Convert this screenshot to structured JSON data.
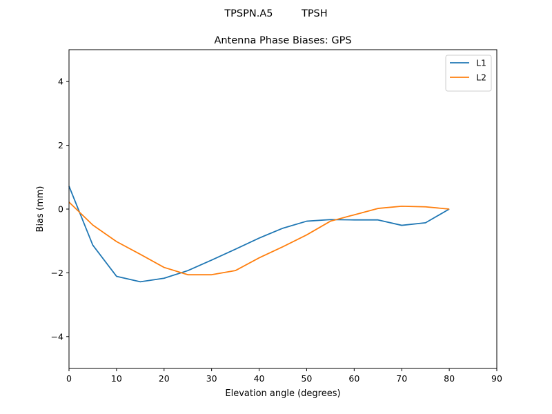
{
  "figure": {
    "suptitle": "TPSPN.A5         TPSH"
  },
  "chart_data": {
    "type": "line",
    "title": "Antenna Phase Biases: GPS",
    "xlabel": "Elevation angle (degrees)",
    "ylabel": "Bias (mm)",
    "xlim": [
      0,
      90
    ],
    "ylim": [
      -5,
      5
    ],
    "xticks": [
      0,
      10,
      20,
      30,
      40,
      50,
      60,
      70,
      80,
      90
    ],
    "yticks": [
      -4,
      -2,
      0,
      2,
      4
    ],
    "ytick_labels": [
      "−4",
      "−2",
      "0",
      "2",
      "4"
    ],
    "grid": false,
    "legend_position": "top-right",
    "x": [
      0,
      5,
      10,
      15,
      20,
      25,
      30,
      35,
      40,
      45,
      50,
      55,
      60,
      65,
      70,
      75,
      80
    ],
    "series": [
      {
        "name": "L1",
        "color": "#1f77b4",
        "values": [
          0.72,
          -1.13,
          -2.11,
          -2.28,
          -2.17,
          -1.93,
          -1.6,
          -1.26,
          -0.91,
          -0.6,
          -0.38,
          -0.33,
          -0.34,
          -0.34,
          -0.51,
          -0.43,
          0.0
        ]
      },
      {
        "name": "L2",
        "color": "#ff7f0e",
        "values": [
          0.22,
          -0.5,
          -1.02,
          -1.42,
          -1.83,
          -2.06,
          -2.06,
          -1.93,
          -1.53,
          -1.18,
          -0.81,
          -0.38,
          -0.18,
          0.02,
          0.09,
          0.07,
          0.0
        ]
      }
    ]
  }
}
